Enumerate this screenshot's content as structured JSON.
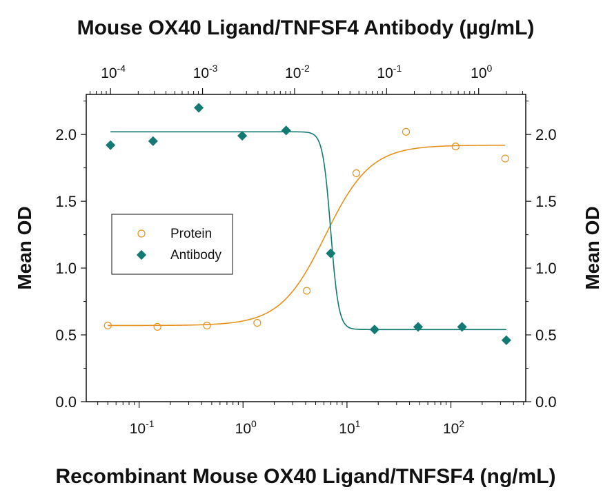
{
  "colors": {
    "protein": "#e8901c",
    "antibody": "#127a73",
    "axis": "#111111",
    "background": "#ffffff"
  },
  "chart_data": {
    "type": "scatter",
    "title": "Mouse OX40 Ligand/TNFSF4 Antibody (µg/mL)",
    "xlabel": "Recombinant Mouse OX40 Ligand/TNFSF4 (ng/mL)",
    "ylabel_left": "Mean OD",
    "ylabel_right": "Mean OD",
    "x_scale": "log",
    "xlim": [
      0.031,
      525
    ],
    "x_ticks": [
      {
        "base": "10",
        "exp": "-1",
        "value": 0.1
      },
      {
        "base": "10",
        "exp": "0",
        "value": 1
      },
      {
        "base": "10",
        "exp": "1",
        "value": 10
      },
      {
        "base": "10",
        "exp": "2",
        "value": 100
      }
    ],
    "top_axis": {
      "scale": "log",
      "xlim": [
        5.45e-05,
        3.25
      ],
      "ticks": [
        {
          "base": "10",
          "exp": "-4",
          "value": 0.0001
        },
        {
          "base": "10",
          "exp": "-3",
          "value": 0.001
        },
        {
          "base": "10",
          "exp": "-2",
          "value": 0.01
        },
        {
          "base": "10",
          "exp": "-1",
          "value": 0.1
        },
        {
          "base": "10",
          "exp": "0",
          "value": 1
        }
      ]
    },
    "ylim": [
      0,
      2.3
    ],
    "y_ticks": [
      "0.0",
      "0.5",
      "1.0",
      "1.5",
      "2.0"
    ],
    "legend": {
      "position": "middle-left",
      "entries": [
        "Protein",
        "Antibody"
      ]
    },
    "grid": false,
    "series": [
      {
        "name": "Protein",
        "axis": "bottom",
        "marker": "open-circle",
        "points": [
          {
            "x": 0.05,
            "y": 0.57
          },
          {
            "x": 0.15,
            "y": 0.56
          },
          {
            "x": 0.45,
            "y": 0.57
          },
          {
            "x": 1.37,
            "y": 0.59
          },
          {
            "x": 4.1,
            "y": 0.83
          },
          {
            "x": 12.3,
            "y": 1.71
          },
          {
            "x": 37,
            "y": 2.02
          },
          {
            "x": 111,
            "y": 1.91
          },
          {
            "x": 333,
            "y": 1.82
          }
        ],
        "fit": {
          "bottom": 0.57,
          "top": 1.92,
          "ec50": 6.2,
          "hill": 2.0
        }
      },
      {
        "name": "Antibody",
        "axis": "top",
        "marker": "filled-diamond",
        "points": [
          {
            "x": 0.0001,
            "y": 1.92
          },
          {
            "x": 0.00029,
            "y": 1.95
          },
          {
            "x": 0.00091,
            "y": 2.2
          },
          {
            "x": 0.0027,
            "y": 1.99
          },
          {
            "x": 0.0081,
            "y": 2.03
          },
          {
            "x": 0.0247,
            "y": 1.11
          },
          {
            "x": 0.074,
            "y": 0.54
          },
          {
            "x": 0.22,
            "y": 0.56
          },
          {
            "x": 0.66,
            "y": 0.56
          },
          {
            "x": 2.0,
            "y": 0.46
          }
        ],
        "fit": {
          "bottom": 0.54,
          "top": 2.02,
          "ec50": 0.0247,
          "hill": -10
        }
      }
    ]
  }
}
